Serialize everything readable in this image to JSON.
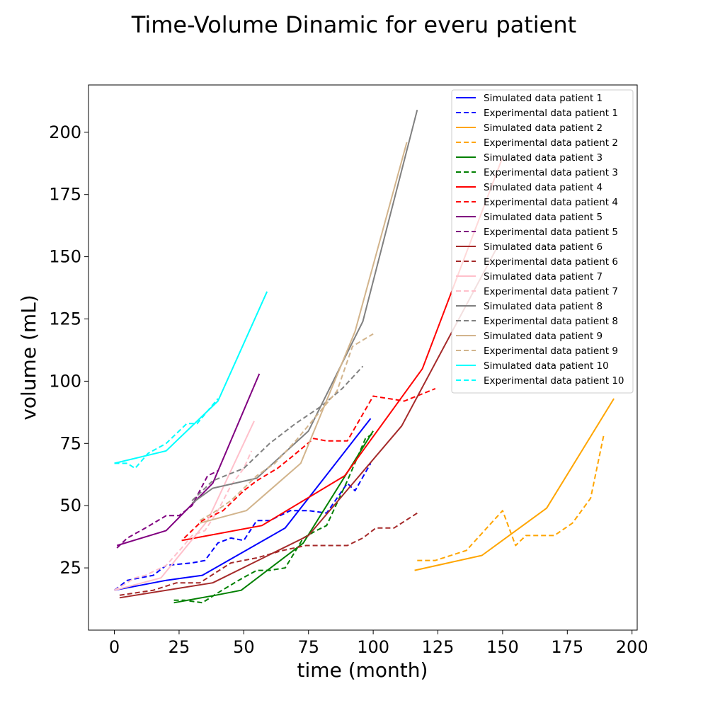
{
  "chart_data": {
    "type": "line",
    "title": "Time-Volume Dinamic for everu patient",
    "xlabel": "time (month)",
    "ylabel": "volume (mL)",
    "xlim": [
      -10,
      202
    ],
    "ylim": [
      0,
      219
    ],
    "xticks": [
      0,
      25,
      50,
      75,
      100,
      125,
      150,
      175,
      200
    ],
    "yticks": [
      25,
      50,
      75,
      100,
      125,
      150,
      175,
      200
    ],
    "grid": false,
    "legend_position": "top-right",
    "series": [
      {
        "name": "Simulated data patient 1",
        "color": "#0000ff",
        "dashed": false,
        "points": [
          [
            0,
            16
          ],
          [
            20,
            20
          ],
          [
            34,
            22
          ],
          [
            66,
            41
          ],
          [
            99,
            85
          ]
        ]
      },
      {
        "name": "Experimental data patient 1",
        "color": "#0000ff",
        "dashed": true,
        "points": [
          [
            0,
            16
          ],
          [
            5,
            20
          ],
          [
            15,
            22
          ],
          [
            20,
            26
          ],
          [
            30,
            27
          ],
          [
            35,
            28
          ],
          [
            40,
            35
          ],
          [
            45,
            37
          ],
          [
            50,
            36
          ],
          [
            55,
            44
          ],
          [
            60,
            44
          ],
          [
            68,
            48
          ],
          [
            75,
            48
          ],
          [
            82,
            47
          ],
          [
            90,
            59
          ],
          [
            93,
            56
          ],
          [
            99,
            67
          ]
        ]
      },
      {
        "name": "Simulated data patient 2",
        "color": "#ffa500",
        "dashed": false,
        "points": [
          [
            116,
            24
          ],
          [
            142,
            30
          ],
          [
            167,
            49
          ],
          [
            193,
            93
          ]
        ]
      },
      {
        "name": "Experimental data patient 2",
        "color": "#ffa500",
        "dashed": true,
        "points": [
          [
            117,
            28
          ],
          [
            124,
            28
          ],
          [
            136,
            32
          ],
          [
            150,
            48
          ],
          [
            155,
            34
          ],
          [
            159,
            38
          ],
          [
            165,
            38
          ],
          [
            170,
            38
          ],
          [
            177,
            43
          ],
          [
            184,
            53
          ],
          [
            189,
            78
          ]
        ]
      },
      {
        "name": "Simulated data patient 3",
        "color": "#008000",
        "dashed": false,
        "points": [
          [
            23,
            11
          ],
          [
            39,
            14
          ],
          [
            49,
            16
          ],
          [
            73,
            35
          ],
          [
            100,
            80
          ]
        ]
      },
      {
        "name": "Experimental data patient 3",
        "color": "#008000",
        "dashed": true,
        "points": [
          [
            23,
            12
          ],
          [
            27,
            12
          ],
          [
            34,
            11
          ],
          [
            40,
            15
          ],
          [
            48,
            20
          ],
          [
            55,
            24
          ],
          [
            60,
            24
          ],
          [
            66,
            25
          ],
          [
            73,
            37
          ],
          [
            78,
            40
          ],
          [
            82,
            42
          ],
          [
            90,
            60
          ],
          [
            97,
            77
          ],
          [
            100,
            79
          ]
        ]
      },
      {
        "name": "Simulated data patient 4",
        "color": "#ff0000",
        "dashed": false,
        "points": [
          [
            26,
            36
          ],
          [
            57,
            42
          ],
          [
            89,
            62
          ],
          [
            119,
            105
          ],
          [
            150,
            190
          ]
        ]
      },
      {
        "name": "Experimental data patient 4",
        "color": "#ff0000",
        "dashed": true,
        "points": [
          [
            27,
            37
          ],
          [
            34,
            44
          ],
          [
            42,
            48
          ],
          [
            50,
            56
          ],
          [
            55,
            60
          ],
          [
            63,
            65
          ],
          [
            69,
            70
          ],
          [
            77,
            77
          ],
          [
            82,
            76
          ],
          [
            90,
            76
          ],
          [
            100,
            94
          ],
          [
            112,
            92
          ],
          [
            124,
            97
          ]
        ]
      },
      {
        "name": "Simulated data patient 5",
        "color": "#800080",
        "dashed": false,
        "points": [
          [
            1,
            34
          ],
          [
            20,
            40
          ],
          [
            38,
            59
          ],
          [
            56,
            103
          ]
        ]
      },
      {
        "name": "Experimental data patient 5",
        "color": "#800080",
        "dashed": true,
        "points": [
          [
            1,
            33
          ],
          [
            5,
            37
          ],
          [
            12,
            41
          ],
          [
            20,
            46
          ],
          [
            25,
            46
          ],
          [
            30,
            50
          ],
          [
            36,
            62
          ],
          [
            40,
            64
          ]
        ]
      },
      {
        "name": "Simulated data patient 6",
        "color": "#a52a2a",
        "dashed": false,
        "points": [
          [
            2,
            13
          ],
          [
            38,
            19
          ],
          [
            75,
            38
          ],
          [
            111,
            82
          ],
          [
            148,
            154
          ]
        ]
      },
      {
        "name": "Experimental data patient 6",
        "color": "#a52a2a",
        "dashed": true,
        "points": [
          [
            2,
            14
          ],
          [
            15,
            16
          ],
          [
            24,
            19
          ],
          [
            33,
            19
          ],
          [
            45,
            27
          ],
          [
            55,
            29
          ],
          [
            65,
            32
          ],
          [
            74,
            34
          ],
          [
            82,
            34
          ],
          [
            90,
            34
          ],
          [
            96,
            37
          ],
          [
            101,
            41
          ],
          [
            108,
            41
          ],
          [
            117,
            47
          ]
        ]
      },
      {
        "name": "Simulated data patient 7",
        "color": "#ffc0cb",
        "dashed": false,
        "points": [
          [
            0,
            16
          ],
          [
            18,
            21
          ],
          [
            36,
            44
          ],
          [
            54,
            84
          ]
        ]
      },
      {
        "name": "Experimental data patient 7",
        "color": "#ffc0cb",
        "dashed": true,
        "points": [
          [
            0,
            16
          ],
          [
            8,
            21
          ],
          [
            12,
            22
          ],
          [
            20,
            26
          ],
          [
            26,
            33
          ],
          [
            30,
            38
          ],
          [
            35,
            40
          ],
          [
            40,
            48
          ],
          [
            45,
            58
          ],
          [
            50,
            65
          ],
          [
            53,
            72
          ]
        ]
      },
      {
        "name": "Simulated data patient 8",
        "color": "#808080",
        "dashed": false,
        "points": [
          [
            30,
            51
          ],
          [
            38,
            57
          ],
          [
            55,
            61
          ],
          [
            75,
            80
          ],
          [
            96,
            124
          ],
          [
            117,
            209
          ]
        ]
      },
      {
        "name": "Experimental data patient 8",
        "color": "#808080",
        "dashed": true,
        "points": [
          [
            30,
            52
          ],
          [
            38,
            60
          ],
          [
            50,
            65
          ],
          [
            60,
            75
          ],
          [
            70,
            83
          ],
          [
            80,
            90
          ],
          [
            88,
            97
          ],
          [
            96,
            106
          ]
        ]
      },
      {
        "name": "Simulated data patient 9",
        "color": "#d2b48c",
        "dashed": false,
        "points": [
          [
            33,
            43
          ],
          [
            51,
            48
          ],
          [
            72,
            67
          ],
          [
            93,
            120
          ],
          [
            113,
            196
          ]
        ]
      },
      {
        "name": "Experimental data patient 9",
        "color": "#d2b48c",
        "dashed": true,
        "points": [
          [
            33,
            44
          ],
          [
            38,
            47
          ],
          [
            45,
            52
          ],
          [
            55,
            62
          ],
          [
            62,
            67
          ],
          [
            70,
            76
          ],
          [
            78,
            86
          ],
          [
            86,
            96
          ],
          [
            92,
            114
          ],
          [
            100,
            119
          ]
        ]
      },
      {
        "name": "Simulated data patient 10",
        "color": "#00ffff",
        "dashed": false,
        "points": [
          [
            0,
            67
          ],
          [
            20,
            72
          ],
          [
            40,
            92
          ],
          [
            59,
            136
          ]
        ]
      },
      {
        "name": "Experimental data patient 10",
        "color": "#00ffff",
        "dashed": true,
        "points": [
          [
            0,
            67
          ],
          [
            5,
            67
          ],
          [
            8,
            65
          ],
          [
            13,
            71
          ],
          [
            20,
            75
          ],
          [
            28,
            83
          ],
          [
            32,
            83
          ],
          [
            40,
            93
          ]
        ]
      }
    ]
  }
}
